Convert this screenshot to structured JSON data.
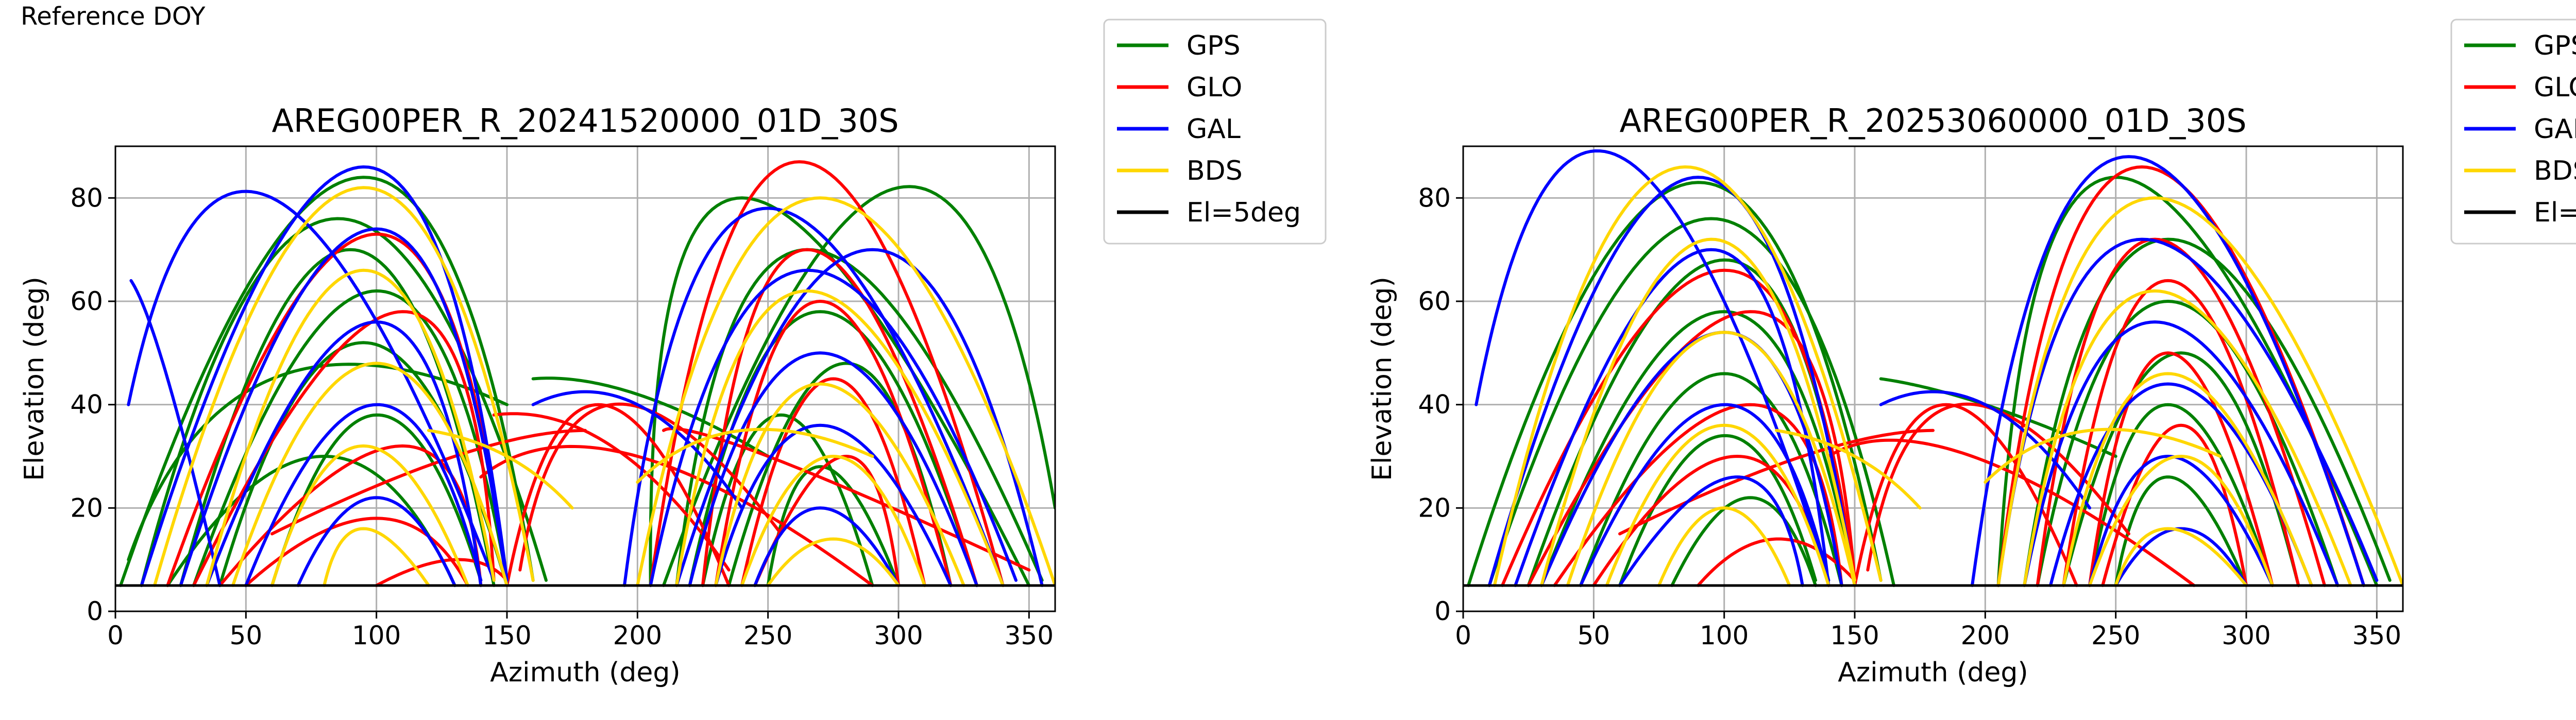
{
  "header": {
    "label": "Reference DOY"
  },
  "colors": {
    "GPS": "#008000",
    "GLO": "#ff0000",
    "GAL": "#0000ff",
    "BDS": "#ffd700",
    "mask": "#000000",
    "grid": "#b0b0b0"
  },
  "legend": [
    {
      "label": "GPS",
      "color_key": "GPS"
    },
    {
      "label": "GLO",
      "color_key": "GLO"
    },
    {
      "label": "GAL",
      "color_key": "GAL"
    },
    {
      "label": "BDS",
      "color_key": "BDS"
    },
    {
      "label": "El=5deg",
      "color_key": "mask"
    }
  ],
  "chart_data": [
    {
      "type": "scatter",
      "title": "AREG00PER_R_20241520000_01D_30S",
      "xlabel": "Azimuth (deg)",
      "ylabel": "Elevation (deg)",
      "xlim": [
        0,
        360
      ],
      "ylim": [
        0,
        90
      ],
      "xticks": [
        0,
        50,
        100,
        150,
        200,
        250,
        300,
        350
      ],
      "yticks": [
        0,
        20,
        40,
        60,
        80
      ],
      "grid": true,
      "legend_position": "outside-right",
      "elevation_mask_deg": 5,
      "series": [
        {
          "name": "GPS",
          "tracks": [
            [
              2,
              5,
              95,
              84,
              160,
              6
            ],
            [
              10,
              5,
              85,
              76,
              165,
              6
            ],
            [
              25,
              5,
              90,
              70,
              145,
              5
            ],
            [
              30,
              5,
              100,
              62,
              150,
              6
            ],
            [
              40,
              5,
              95,
              52,
              150,
              5
            ],
            [
              60,
              5,
              100,
              38,
              140,
              6
            ],
            [
              20,
              5,
              80,
              30,
              130,
              5
            ],
            [
              5,
              10,
              60,
              45,
              150,
              40
            ],
            [
              205,
              5,
              240,
              80,
              350,
              5
            ],
            [
              215,
              5,
              265,
              70,
              355,
              6
            ],
            [
              220,
              5,
              270,
              58,
              330,
              5
            ],
            [
              235,
              5,
              280,
              48,
              320,
              5
            ],
            [
              225,
              5,
              255,
              38,
              290,
              5
            ],
            [
              250,
              5,
              270,
              28,
              300,
              5
            ],
            [
              160,
              45,
              200,
              42,
              250,
              30
            ],
            [
              210,
              5,
              300,
              82,
              360,
              20
            ]
          ]
        },
        {
          "name": "GLO",
          "tracks": [
            [
              20,
              5,
              100,
              73,
              150,
              6
            ],
            [
              30,
              5,
              110,
              58,
              145,
              6
            ],
            [
              40,
              5,
              110,
              32,
              140,
              5
            ],
            [
              50,
              5,
              100,
              18,
              135,
              5
            ],
            [
              100,
              5,
              130,
              10,
              150,
              6
            ],
            [
              150,
              5,
              185,
              40,
              235,
              5
            ],
            [
              155,
              8,
              190,
              40,
              255,
              15
            ],
            [
              145,
              38,
              190,
              32,
              235,
              8
            ],
            [
              140,
              26,
              200,
              30,
              290,
              5
            ],
            [
              205,
              5,
              262,
              87,
              340,
              5
            ],
            [
              225,
              5,
              265,
              70,
              330,
              5
            ],
            [
              230,
              5,
              270,
              60,
              320,
              5
            ],
            [
              240,
              5,
              275,
              45,
              310,
              5
            ],
            [
              245,
              5,
              280,
              30,
              300,
              5
            ],
            [
              60,
              15,
              130,
              30,
              180,
              35
            ],
            [
              210,
              35,
              250,
              30,
              350,
              8
            ]
          ]
        },
        {
          "name": "GAL",
          "tracks": [
            [
              5,
              40,
              60,
              80,
              145,
              6
            ],
            [
              10,
              5,
              95,
              86,
              150,
              6
            ],
            [
              25,
              5,
              100,
              74,
              150,
              5
            ],
            [
              35,
              5,
              100,
              56,
              140,
              5
            ],
            [
              50,
              5,
              100,
              40,
              140,
              6
            ],
            [
              70,
              5,
              100,
              22,
              130,
              5
            ],
            [
              6,
              64,
              20,
              45,
              40,
              5
            ],
            [
              195,
              5,
              250,
              78,
              340,
              5
            ],
            [
              205,
              5,
              265,
              66,
              345,
              6
            ],
            [
              220,
              5,
              270,
              50,
              330,
              5
            ],
            [
              230,
              5,
              270,
              36,
              320,
              5
            ],
            [
              245,
              5,
              270,
              20,
              300,
              5
            ],
            [
              215,
              5,
              290,
              70,
              355,
              5
            ],
            [
              160,
              40,
              200,
              40,
              240,
              20
            ]
          ]
        },
        {
          "name": "BDS",
          "tracks": [
            [
              15,
              5,
              95,
              82,
              160,
              6
            ],
            [
              35,
              5,
              95,
              66,
              145,
              6
            ],
            [
              45,
              5,
              100,
              48,
              150,
              5
            ],
            [
              60,
              5,
              95,
              32,
              135,
              5
            ],
            [
              80,
              5,
              95,
              16,
              120,
              5
            ],
            [
              200,
              5,
              270,
              80,
              360,
              5
            ],
            [
              215,
              5,
              265,
              62,
              340,
              5
            ],
            [
              230,
              5,
              270,
              44,
              325,
              5
            ],
            [
              240,
              5,
              275,
              30,
              310,
              5
            ],
            [
              250,
              5,
              275,
              14,
              300,
              5
            ],
            [
              120,
              35,
              150,
              30,
              175,
              20
            ],
            [
              200,
              25,
              240,
              35,
              290,
              30
            ]
          ]
        }
      ]
    },
    {
      "type": "scatter",
      "title": "AREG00PER_R_20253060000_01D_30S",
      "xlabel": "Azimuth (deg)",
      "ylabel": "Elevation (deg)",
      "xlim": [
        0,
        360
      ],
      "ylim": [
        0,
        90
      ],
      "xticks": [
        0,
        50,
        100,
        150,
        200,
        250,
        300,
        350
      ],
      "yticks": [
        0,
        20,
        40,
        60,
        80
      ],
      "grid": true,
      "legend_position": "outside-right",
      "elevation_mask_deg": 5,
      "series": [
        {
          "name": "GPS",
          "tracks": [
            [
              2,
              5,
              90,
              83,
              160,
              6
            ],
            [
              10,
              5,
              95,
              76,
              165,
              5
            ],
            [
              25,
              5,
              100,
              68,
              150,
              6
            ],
            [
              30,
              5,
              100,
              58,
              150,
              5
            ],
            [
              45,
              5,
              100,
              46,
              145,
              5
            ],
            [
              60,
              5,
              100,
              34,
              135,
              6
            ],
            [
              80,
              5,
              110,
              22,
              135,
              5
            ],
            [
              205,
              5,
              250,
              84,
              350,
              5
            ],
            [
              215,
              5,
              270,
              72,
              355,
              6
            ],
            [
              220,
              5,
              270,
              60,
              335,
              5
            ],
            [
              230,
              5,
              275,
              50,
              320,
              5
            ],
            [
              240,
              5,
              270,
              40,
              310,
              5
            ],
            [
              250,
              5,
              270,
              26,
              300,
              5
            ],
            [
              160,
              45,
              200,
              40,
              250,
              30
            ]
          ]
        },
        {
          "name": "GLO",
          "tracks": [
            [
              15,
              5,
              100,
              66,
              150,
              6
            ],
            [
              25,
              5,
              110,
              58,
              150,
              6
            ],
            [
              35,
              5,
              110,
              40,
              145,
              5
            ],
            [
              50,
              5,
              105,
              30,
              140,
              5
            ],
            [
              90,
              5,
              120,
              14,
              150,
              6
            ],
            [
              150,
              5,
              185,
              40,
              235,
              5
            ],
            [
              155,
              8,
              190,
              40,
              255,
              15
            ],
            [
              140,
              30,
              195,
              30,
              280,
              5
            ],
            [
              205,
              5,
              260,
              86,
              345,
              5
            ],
            [
              220,
              5,
              265,
              72,
              330,
              5
            ],
            [
              230,
              5,
              270,
              64,
              320,
              5
            ],
            [
              240,
              5,
              270,
              50,
              310,
              5
            ],
            [
              245,
              5,
              275,
              36,
              300,
              5
            ],
            [
              60,
              15,
              130,
              30,
              180,
              35
            ]
          ]
        },
        {
          "name": "GAL",
          "tracks": [
            [
              5,
              40,
              60,
              88,
              140,
              6
            ],
            [
              10,
              5,
              90,
              84,
              150,
              5
            ],
            [
              20,
              5,
              95,
              70,
              140,
              5
            ],
            [
              30,
              5,
              100,
              54,
              145,
              5
            ],
            [
              45,
              5,
              100,
              40,
              140,
              6
            ],
            [
              60,
              5,
              105,
              26,
              130,
              5
            ],
            [
              195,
              5,
              255,
              88,
              345,
              5
            ],
            [
              205,
              5,
              260,
              72,
              350,
              6
            ],
            [
              215,
              5,
              265,
              56,
              335,
              5
            ],
            [
              225,
              5,
              270,
              44,
              325,
              5
            ],
            [
              240,
              5,
              270,
              30,
              310,
              5
            ],
            [
              250,
              5,
              275,
              16,
              300,
              5
            ],
            [
              160,
              40,
              200,
              40,
              240,
              20
            ]
          ]
        },
        {
          "name": "BDS",
          "tracks": [
            [
              12,
              5,
              85,
              86,
              160,
              6
            ],
            [
              30,
              5,
              95,
              72,
              150,
              6
            ],
            [
              40,
              5,
              100,
              54,
              150,
              5
            ],
            [
              55,
              5,
              100,
              36,
              140,
              5
            ],
            [
              75,
              5,
              100,
              20,
              125,
              5
            ],
            [
              205,
              5,
              265,
              80,
              360,
              5
            ],
            [
              215,
              5,
              265,
              62,
              340,
              5
            ],
            [
              230,
              5,
              270,
              46,
              325,
              5
            ],
            [
              240,
              5,
              275,
              30,
              310,
              5
            ],
            [
              250,
              5,
              270,
              16,
              300,
              5
            ],
            [
              120,
              35,
              150,
              30,
              175,
              20
            ],
            [
              200,
              25,
              240,
              35,
              290,
              30
            ]
          ]
        }
      ]
    }
  ]
}
